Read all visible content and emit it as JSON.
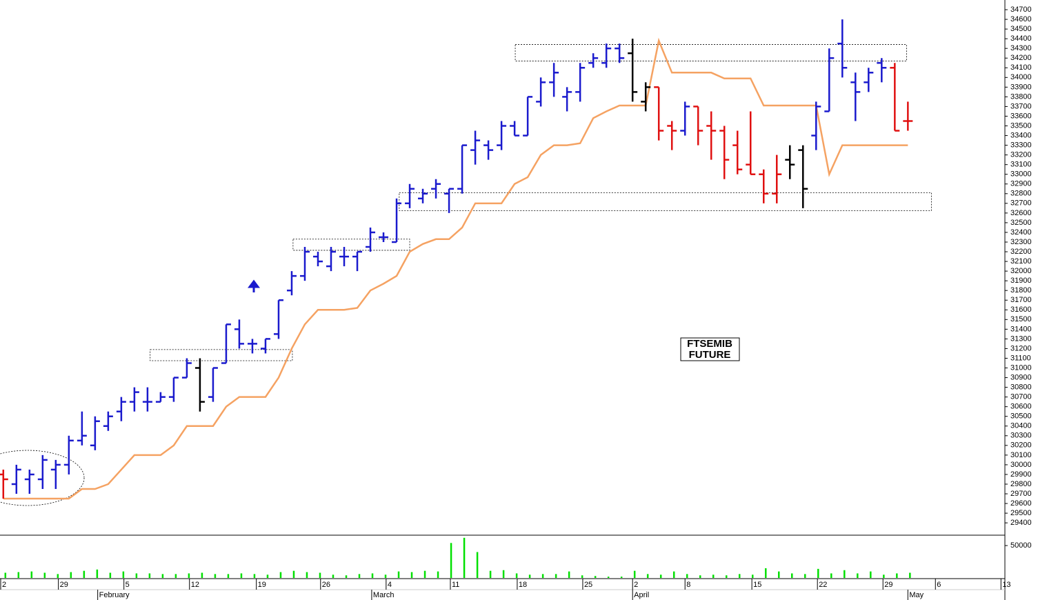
{
  "chart_data": [
    {
      "type": "ohlc",
      "x": [
        0,
        1,
        2,
        3,
        4,
        5,
        6,
        7,
        8,
        9,
        10,
        11,
        12,
        13,
        14,
        15,
        16,
        17,
        18,
        19,
        20,
        21,
        22,
        23,
        24,
        25,
        26,
        27,
        28,
        29,
        30,
        31,
        32,
        33,
        34,
        35,
        36,
        37,
        38,
        39,
        40,
        41,
        42,
        43,
        44,
        45,
        46,
        47,
        48,
        49,
        50,
        51,
        52,
        53,
        54,
        55,
        56,
        57,
        58,
        59,
        60,
        61,
        62,
        63,
        64,
        65,
        66,
        67,
        68,
        69
      ],
      "open": [
        29900,
        29800,
        29850,
        29850,
        29950,
        30000,
        30250,
        30200,
        30400,
        30550,
        30650,
        30650,
        30650,
        30700,
        30900,
        31000,
        30700,
        31050,
        31400,
        31250,
        31200,
        31350,
        31800,
        31950,
        32150,
        32050,
        32150,
        32150,
        32250,
        32350,
        32300,
        32700,
        32750,
        32850,
        32800,
        32850,
        33250,
        33300,
        33300,
        33500,
        33400,
        33750,
        33950,
        33800,
        33850,
        34150,
        34150,
        34300,
        34250,
        33750,
        33900,
        33500,
        33450,
        33700,
        33500,
        33450,
        33300,
        33100,
        33000,
        32800,
        33150,
        33250,
        33400,
        33650,
        34350,
        33950,
        33950,
        34150,
        34100,
        33550
      ],
      "high": [
        29950,
        30000,
        29950,
        30100,
        30050,
        30300,
        30550,
        30500,
        30550,
        30700,
        30800,
        30800,
        30750,
        30900,
        31100,
        31100,
        31000,
        31450,
        31500,
        31300,
        31300,
        31700,
        32000,
        32250,
        32200,
        32250,
        32250,
        32200,
        32450,
        32400,
        32750,
        32900,
        32850,
        32950,
        32850,
        33300,
        33450,
        33350,
        33550,
        33550,
        33800,
        34000,
        34150,
        33900,
        34150,
        34250,
        34350,
        34350,
        34400,
        33950,
        33900,
        33550,
        33750,
        33700,
        33650,
        33500,
        33450,
        33650,
        33050,
        33200,
        33300,
        33300,
        33750,
        34300,
        34600,
        34050,
        34100,
        34200,
        34150,
        33750
      ],
      "low": [
        29650,
        29700,
        29700,
        29750,
        29750,
        29900,
        30200,
        30150,
        30350,
        30450,
        30550,
        30550,
        30650,
        30650,
        30900,
        30550,
        30650,
        31050,
        31200,
        31150,
        31150,
        31300,
        31750,
        31900,
        32050,
        32000,
        32050,
        32000,
        32200,
        32300,
        32300,
        32650,
        32700,
        32750,
        32600,
        32800,
        33100,
        33150,
        33250,
        33400,
        33400,
        33700,
        33800,
        33650,
        33750,
        34100,
        34100,
        34150,
        33750,
        33650,
        33350,
        33250,
        33400,
        33300,
        33150,
        32950,
        33000,
        33000,
        32700,
        32700,
        32950,
        32650,
        33250,
        33650,
        34000,
        33550,
        33850,
        33950,
        33450,
        33450
      ],
      "close": [
        29850,
        29950,
        29900,
        30050,
        30000,
        30250,
        30300,
        30450,
        30500,
        30650,
        30750,
        30650,
        30700,
        30900,
        31050,
        30650,
        31000,
        31450,
        31250,
        31250,
        31300,
        31700,
        31950,
        32200,
        32100,
        32200,
        32150,
        32200,
        32400,
        32350,
        32700,
        32850,
        32800,
        32900,
        32850,
        33300,
        33350,
        33250,
        33500,
        33400,
        33800,
        33950,
        34050,
        33850,
        34100,
        34200,
        34300,
        34200,
        33850,
        33900,
        33450,
        33450,
        33700,
        33450,
        33450,
        33150,
        33050,
        33000,
        32800,
        33000,
        33100,
        32850,
        33700,
        34200,
        34100,
        33850,
        34050,
        34100,
        33450,
        33550
      ],
      "bar_colors": [
        "#e01010",
        "#1a1acd",
        "#1a1acd",
        "#1a1acd",
        "#1a1acd",
        "#1a1acd",
        "#1a1acd",
        "#1a1acd",
        "#1a1acd",
        "#1a1acd",
        "#1a1acd",
        "#1a1acd",
        "#1a1acd",
        "#1a1acd",
        "#1a1acd",
        "#000000",
        "#1a1acd",
        "#1a1acd",
        "#1a1acd",
        "#1a1acd",
        "#1a1acd",
        "#1a1acd",
        "#1a1acd",
        "#1a1acd",
        "#1a1acd",
        "#1a1acd",
        "#1a1acd",
        "#1a1acd",
        "#1a1acd",
        "#1a1acd",
        "#1a1acd",
        "#1a1acd",
        "#1a1acd",
        "#1a1acd",
        "#1a1acd",
        "#1a1acd",
        "#1a1acd",
        "#1a1acd",
        "#1a1acd",
        "#1a1acd",
        "#1a1acd",
        "#1a1acd",
        "#1a1acd",
        "#1a1acd",
        "#1a1acd",
        "#1a1acd",
        "#1a1acd",
        "#1a1acd",
        "#000000",
        "#000000",
        "#e01010",
        "#e01010",
        "#1a1acd",
        "#e01010",
        "#e01010",
        "#e01010",
        "#e01010",
        "#e01010",
        "#e01010",
        "#e01010",
        "#000000",
        "#000000",
        "#1a1acd",
        "#1a1acd",
        "#1a1acd",
        "#1a1acd",
        "#1a1acd",
        "#1a1acd",
        "#e01010",
        "#e01010"
      ],
      "stop_line": {
        "color": "#f5a262",
        "values": [
          29650,
          29650,
          29650,
          29650,
          29650,
          29650,
          29750,
          29750,
          29800,
          29950,
          30100,
          30100,
          30100,
          30200,
          30400,
          30400,
          30400,
          30600,
          30700,
          30700,
          30700,
          30900,
          31200,
          31450,
          31600,
          31600,
          31600,
          31620,
          31800,
          31870,
          31950,
          32200,
          32280,
          32330,
          32330,
          32450,
          32700,
          32700,
          32700,
          32900,
          32970,
          33200,
          33300,
          33300,
          33320,
          33580,
          33650,
          33710,
          33710,
          33710,
          34380,
          34050,
          34050,
          34050,
          34050,
          33990,
          33990,
          33990,
          33710,
          33710,
          33710,
          33710,
          33710,
          33000,
          33300,
          33300,
          33300,
          33300,
          33300,
          33300
        ]
      },
      "zones": [
        {
          "x": [
            11.2,
            22.05
          ],
          "y": [
            31075,
            31190
          ]
        },
        {
          "x": [
            22.1,
            31.0
          ],
          "y": [
            32215,
            32330
          ]
        },
        {
          "x": [
            39.05,
            68.9
          ],
          "y": [
            34170,
            34340
          ]
        },
        {
          "x": [
            30.2,
            70.8
          ],
          "y": [
            32625,
            32810
          ]
        }
      ],
      "annotation": [
        "FTSEMIB",
        "FUTURE"
      ],
      "xlim": [
        -0.2,
        76.4
      ],
      "xticks": [
        {
          "value": -0.2,
          "label": "2"
        },
        {
          "value": 4.2,
          "label": "29"
        },
        {
          "value": 9.2,
          "label": "5"
        },
        {
          "value": 14.2,
          "label": "12"
        },
        {
          "value": 19.3,
          "label": "19"
        },
        {
          "value": 24.2,
          "label": "26"
        },
        {
          "value": 29.2,
          "label": "4"
        },
        {
          "value": 34.1,
          "label": "11"
        },
        {
          "value": 39.2,
          "label": "18"
        },
        {
          "value": 44.2,
          "label": "25"
        },
        {
          "value": 48.0,
          "label": "2"
        },
        {
          "value": 52.0,
          "label": "8"
        },
        {
          "value": 57.1,
          "label": "15"
        },
        {
          "value": 62.1,
          "label": "22"
        },
        {
          "value": 67.1,
          "label": "29"
        },
        {
          "value": 71.1,
          "label": "6"
        },
        {
          "value": 76.1,
          "label": "13"
        }
      ],
      "month_ticks": [
        {
          "value": 7.2,
          "label": "February"
        },
        {
          "value": 28.1,
          "label": "March"
        },
        {
          "value": 48.0,
          "label": "April"
        },
        {
          "value": 69.0,
          "label": "May"
        }
      ],
      "ylim": [
        29280,
        34800
      ],
      "yticks": [
        29400,
        29500,
        29600,
        29700,
        29800,
        29900,
        30000,
        30100,
        30200,
        30300,
        30400,
        30500,
        30600,
        30700,
        30800,
        30900,
        31000,
        31100,
        31200,
        31300,
        31400,
        31500,
        31600,
        31700,
        31800,
        31900,
        32000,
        32100,
        32200,
        32300,
        32400,
        32500,
        32600,
        32700,
        32800,
        32900,
        33000,
        33100,
        33200,
        33300,
        33400,
        33500,
        33600,
        33700,
        33800,
        33900,
        34000,
        34100,
        34200,
        34300,
        34400,
        34500,
        34600,
        34700
      ]
    },
    {
      "type": "bar",
      "color": "#00e000",
      "values": [
        8000,
        9000,
        10000,
        8000,
        6000,
        9000,
        11000,
        13000,
        8000,
        10000,
        7000,
        7000,
        6000,
        6000,
        7000,
        8000,
        6000,
        6000,
        7000,
        6000,
        5000,
        9000,
        11000,
        9000,
        8000,
        5000,
        4000,
        6000,
        7000,
        5000,
        10000,
        9000,
        11000,
        10000,
        54000,
        62000,
        40000,
        11000,
        12000,
        7000,
        5000,
        6000,
        6000,
        10000,
        4000,
        3000,
        2000,
        2000,
        11000,
        6000,
        5000,
        10000,
        6000,
        4000,
        5000,
        4000,
        6000,
        5000,
        15000,
        10000,
        7000,
        6000,
        14000,
        7000,
        12000,
        7000,
        10000,
        5000,
        7000,
        8000
      ],
      "ylim": [
        0,
        65000
      ],
      "yticks": [
        50000
      ]
    }
  ]
}
